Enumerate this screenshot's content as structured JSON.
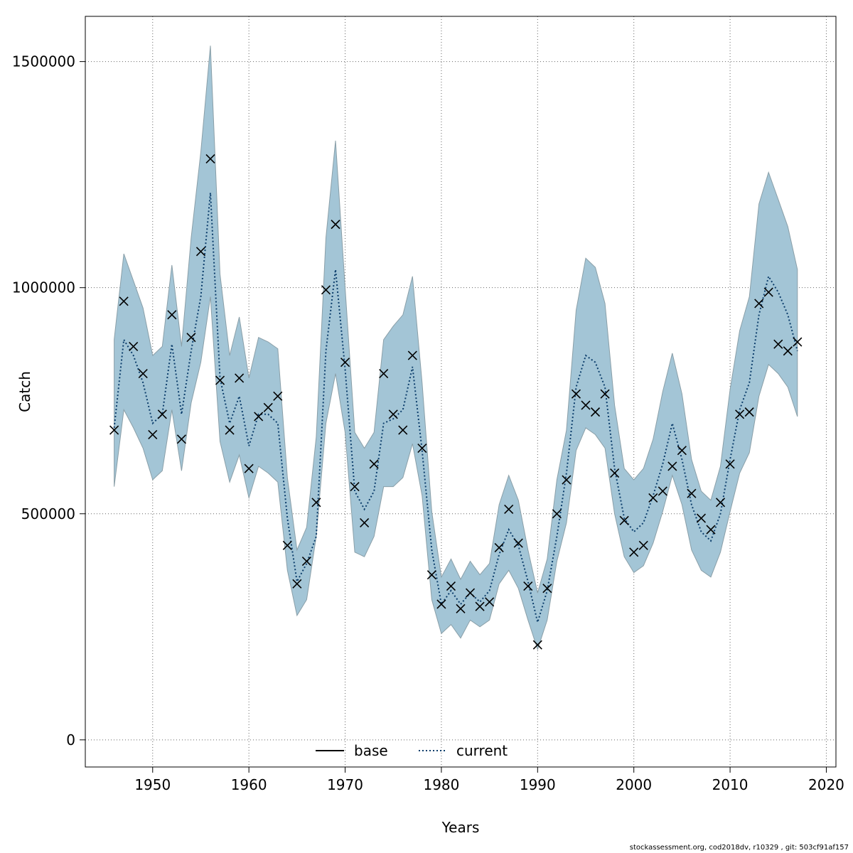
{
  "chart_data": {
    "type": "line",
    "title": "",
    "xlabel": "Years",
    "ylabel": "Catch",
    "xlim": [
      1943,
      2021
    ],
    "ylim": [
      -60000,
      1600000
    ],
    "xticks": [
      1950,
      1960,
      1970,
      1980,
      1990,
      2000,
      2010,
      2020
    ],
    "yticks": [
      0,
      500000,
      1000000,
      1500000
    ],
    "ytick_labels": [
      "0",
      "500000",
      "1000000",
      "1500000"
    ],
    "grid": true,
    "legend": {
      "placement": "bottom",
      "entries": [
        {
          "label": "base",
          "style": "solid",
          "color": "#000000"
        },
        {
          "label": "current",
          "style": "dotted",
          "color": "#0b3d6b"
        }
      ]
    },
    "colors": {
      "band_fill": "#a3c5d6",
      "band_stroke": "#8a9fa8",
      "current_line": "#0b3d6b",
      "marker": "#000000",
      "grid": "#666666"
    },
    "years": [
      1946,
      1947,
      1948,
      1949,
      1950,
      1951,
      1952,
      1953,
      1954,
      1955,
      1956,
      1957,
      1958,
      1959,
      1960,
      1961,
      1962,
      1963,
      1964,
      1965,
      1966,
      1967,
      1968,
      1969,
      1970,
      1971,
      1972,
      1973,
      1974,
      1975,
      1976,
      1977,
      1978,
      1979,
      1980,
      1981,
      1982,
      1983,
      1984,
      1985,
      1986,
      1987,
      1988,
      1989,
      1990,
      1991,
      1992,
      1993,
      1994,
      1995,
      1996,
      1997,
      1998,
      1999,
      2000,
      2001,
      2002,
      2003,
      2004,
      2005,
      2006,
      2007,
      2008,
      2009,
      2010,
      2011,
      2012,
      2013,
      2014,
      2015,
      2016,
      2017
    ],
    "series": [
      {
        "name": "current",
        "values": [
          690000,
          885000,
          850000,
          790000,
          700000,
          720000,
          875000,
          720000,
          860000,
          980000,
          1210000,
          800000,
          700000,
          760000,
          650000,
          720000,
          720000,
          700000,
          490000,
          350000,
          390000,
          450000,
          860000,
          1040000,
          820000,
          550000,
          510000,
          550000,
          700000,
          710000,
          730000,
          825000,
          640000,
          420000,
          300000,
          330000,
          300000,
          325000,
          305000,
          330000,
          410000,
          465000,
          430000,
          350000,
          260000,
          330000,
          450000,
          590000,
          780000,
          850000,
          835000,
          780000,
          600000,
          490000,
          460000,
          480000,
          540000,
          610000,
          700000,
          620000,
          520000,
          460000,
          440000,
          500000,
          620000,
          730000,
          790000,
          940000,
          1025000,
          990000,
          940000,
          860000
        ]
      }
    ],
    "band": {
      "name": "confidence interval",
      "lower": [
        560000,
        730000,
        690000,
        645000,
        575000,
        595000,
        730000,
        595000,
        745000,
        835000,
        980000,
        660000,
        570000,
        630000,
        535000,
        605000,
        590000,
        570000,
        375000,
        275000,
        310000,
        450000,
        700000,
        810000,
        680000,
        415000,
        405000,
        450000,
        560000,
        560000,
        580000,
        655000,
        540000,
        310000,
        235000,
        255000,
        225000,
        265000,
        250000,
        265000,
        345000,
        375000,
        335000,
        265000,
        200000,
        265000,
        395000,
        480000,
        640000,
        690000,
        675000,
        645000,
        500000,
        405000,
        370000,
        385000,
        435000,
        505000,
        585000,
        520000,
        420000,
        375000,
        360000,
        415000,
        505000,
        590000,
        635000,
        760000,
        830000,
        810000,
        780000,
        715000
      ],
      "upper": [
        885000,
        1075000,
        1015000,
        955000,
        850000,
        870000,
        1050000,
        870000,
        1110000,
        1300000,
        1535000,
        1030000,
        850000,
        935000,
        800000,
        890000,
        880000,
        865000,
        580000,
        420000,
        470000,
        670000,
        1110000,
        1325000,
        1000000,
        680000,
        645000,
        680000,
        885000,
        915000,
        940000,
        1025000,
        790000,
        505000,
        360000,
        400000,
        355000,
        395000,
        365000,
        390000,
        520000,
        585000,
        530000,
        420000,
        325000,
        400000,
        575000,
        685000,
        950000,
        1065000,
        1045000,
        965000,
        740000,
        600000,
        575000,
        600000,
        665000,
        770000,
        855000,
        765000,
        620000,
        550000,
        530000,
        605000,
        775000,
        905000,
        980000,
        1185000,
        1255000,
        1195000,
        1135000,
        1040000
      ]
    },
    "observed": {
      "name": "observations",
      "marker": "x",
      "values": [
        685000,
        970000,
        870000,
        810000,
        675000,
        720000,
        940000,
        665000,
        890000,
        1080000,
        1285000,
        795000,
        685000,
        800000,
        600000,
        715000,
        735000,
        760000,
        430000,
        345000,
        395000,
        525000,
        995000,
        1140000,
        835000,
        560000,
        480000,
        610000,
        810000,
        720000,
        685000,
        850000,
        645000,
        365000,
        300000,
        340000,
        290000,
        325000,
        295000,
        305000,
        425000,
        510000,
        435000,
        340000,
        210000,
        335000,
        500000,
        575000,
        765000,
        740000,
        725000,
        765000,
        590000,
        485000,
        415000,
        430000,
        535000,
        550000,
        605000,
        640000,
        545000,
        490000,
        465000,
        525000,
        610000,
        720000,
        725000,
        965000,
        990000,
        875000,
        860000,
        880000
      ]
    }
  },
  "footer": "stockassessment.org, cod2018dv, r10329 , git: 503cf91af157"
}
